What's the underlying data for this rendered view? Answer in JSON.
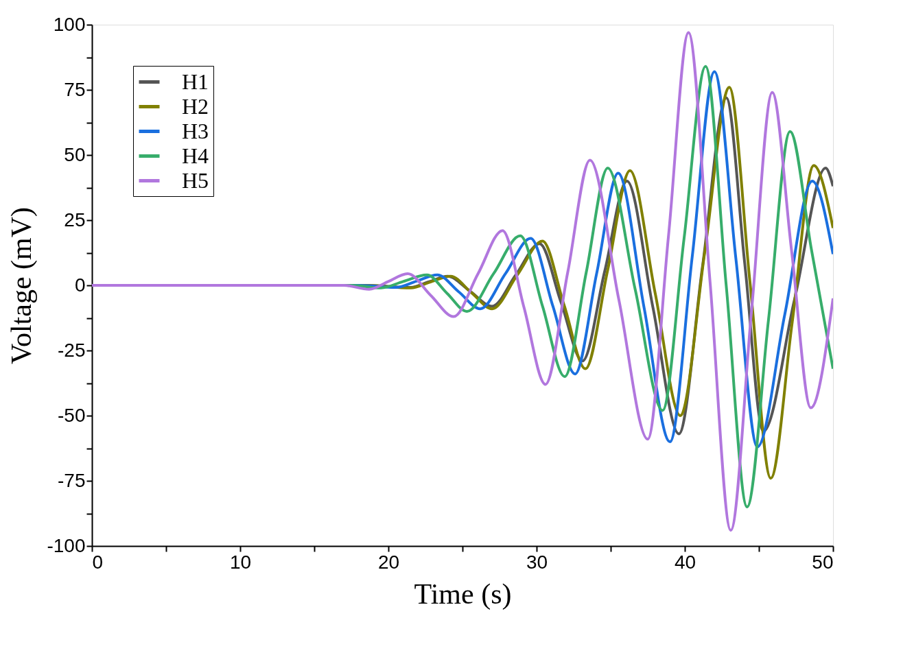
{
  "chart_data": {
    "type": "line",
    "xlabel": "Time (s)",
    "ylabel": "Voltage (mV)",
    "xlim": [
      0,
      50
    ],
    "xticks": [
      0,
      {
        "value": 5,
        "label": null
      },
      10,
      {
        "value": 15,
        "label": null
      },
      20,
      {
        "value": 25,
        "label": null
      },
      30,
      {
        "value": 35,
        "label": null
      },
      40,
      {
        "value": 45,
        "label": null
      },
      50
    ],
    "ylim": [
      -100,
      100
    ],
    "yticks": [
      -100,
      {
        "value": -87.5,
        "label": null
      },
      -75,
      {
        "value": -62.5,
        "label": null
      },
      -50,
      {
        "value": -37.5,
        "label": null
      },
      -25,
      {
        "value": -12.5,
        "label": null
      },
      0,
      {
        "value": 12.5,
        "label": null
      },
      25,
      {
        "value": 37.5,
        "label": null
      },
      50,
      {
        "value": 62.5,
        "label": null
      },
      75,
      {
        "value": 87.5,
        "label": null
      },
      100
    ],
    "grid": false,
    "legend": "top left",
    "marker": "none",
    "line_style": "solid",
    "series": [
      {
        "name": "H1",
        "color": "#555555",
        "x": [
          0,
          18.5,
          21.5,
          22.75,
          24.0,
          25.5,
          27.0,
          28.6,
          30.2,
          31.65,
          33.1,
          34.6,
          36.1,
          37.85,
          39.6,
          41.2,
          42.8,
          44.05,
          45.3,
          47.4,
          49.5,
          50
        ],
        "values": [
          0,
          0,
          -0.8,
          1.4,
          3.5,
          -2.2,
          -8,
          4,
          16,
          -6.5,
          -29,
          5.5,
          40,
          -8.5,
          -57,
          7.5,
          72,
          8,
          -56,
          -5.5,
          45,
          38
        ]
      },
      {
        "name": "H2",
        "color": "#808000",
        "x": [
          0,
          18.5,
          21.5,
          22.85,
          24.2,
          25.6,
          27.0,
          28.7,
          30.4,
          31.85,
          33.3,
          34.8,
          36.3,
          38.0,
          39.7,
          41.35,
          43.0,
          44.4,
          45.8,
          47.25,
          48.7,
          50
        ],
        "values": [
          0,
          0,
          -1,
          1.3,
          3.5,
          -2.8,
          -9,
          4,
          17,
          -7.5,
          -32,
          6,
          44,
          -3,
          -50,
          13,
          76,
          1,
          -74,
          -14,
          46,
          22
        ]
      },
      {
        "name": "H3",
        "color": "#1a6fdf",
        "x": [
          0,
          18,
          20.5,
          21.9,
          23.3,
          24.75,
          26.2,
          27.9,
          29.6,
          31.1,
          32.6,
          34.05,
          35.5,
          37.25,
          39.0,
          40.5,
          42.0,
          43.45,
          44.9,
          46.75,
          48.6,
          50
        ],
        "values": [
          0,
          0,
          -0.8,
          1.6,
          4,
          -2.5,
          -9,
          4.5,
          18,
          -8,
          -34,
          4.5,
          43,
          -8.5,
          -60,
          11,
          82,
          10,
          -62,
          -11,
          40,
          12
        ]
      },
      {
        "name": "H4",
        "color": "#37ad6b",
        "x": [
          0,
          17.5,
          19.5,
          21,
          22.6,
          23.95,
          25.3,
          27.1,
          28.9,
          30.4,
          31.9,
          33.35,
          34.8,
          36.65,
          38.5,
          39.95,
          41.4,
          42.8,
          44.2,
          45.65,
          47.1,
          48.55,
          50
        ],
        "values": [
          0,
          0,
          -1,
          1.5,
          4,
          -3,
          -10,
          4.5,
          19,
          -8,
          -35,
          5,
          45,
          -1.5,
          -48,
          18,
          84,
          -0.5,
          -85,
          -13,
          59,
          13.5,
          -32
        ]
      },
      {
        "name": "H5",
        "color": "#b177de",
        "x": [
          0,
          17,
          18.7,
          20,
          21.3,
          22.85,
          24.4,
          26.05,
          27.7,
          29.15,
          30.6,
          32.1,
          33.6,
          35.55,
          37.5,
          38.9,
          40.25,
          41.7,
          43.1,
          44.5,
          45.9,
          47.2,
          48.5,
          50
        ],
        "values": [
          0,
          0,
          -1.5,
          1.5,
          4.5,
          -3.8,
          -12,
          4.5,
          21,
          -8.5,
          -38,
          5,
          48,
          -5.5,
          -59,
          19,
          97,
          1.5,
          -94,
          -10,
          74,
          13.5,
          -47,
          -5
        ]
      }
    ]
  }
}
